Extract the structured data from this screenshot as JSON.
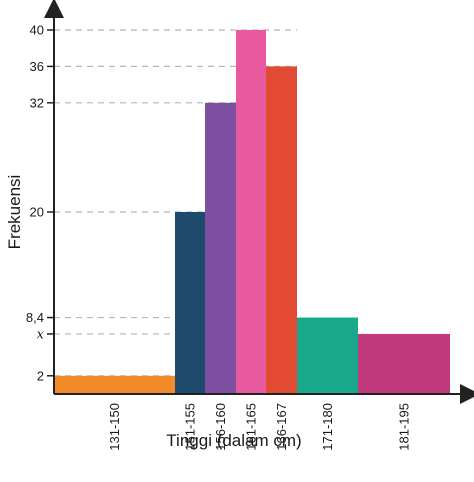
{
  "chart_data": {
    "type": "bar",
    "xlabel": "Tinggi (dalam cm)",
    "ylabel": "Frekuensi",
    "categories": [
      "131-150",
      "151-155",
      "156-160",
      "161-165",
      "166-167",
      "171-180",
      "181-195"
    ],
    "values": [
      2,
      20,
      32,
      40,
      36,
      8.4,
      6.6
    ],
    "y_ticks": [
      {
        "value": 2,
        "label": "2"
      },
      {
        "value": 6.6,
        "label": "x"
      },
      {
        "value": 8.4,
        "label": "8,4"
      },
      {
        "value": 20,
        "label": "20"
      },
      {
        "value": 32,
        "label": "32"
      },
      {
        "value": 36,
        "label": "36"
      },
      {
        "value": 40,
        "label": "40"
      }
    ],
    "bar_colors": [
      "#f28a2a",
      "#1e4a6c",
      "#7c4fa0",
      "#e85aa0",
      "#e24a34",
      "#1aa88c",
      "#c23a7e"
    ],
    "ylim": [
      0,
      43
    ],
    "grid": "dashed lines at tick values"
  }
}
